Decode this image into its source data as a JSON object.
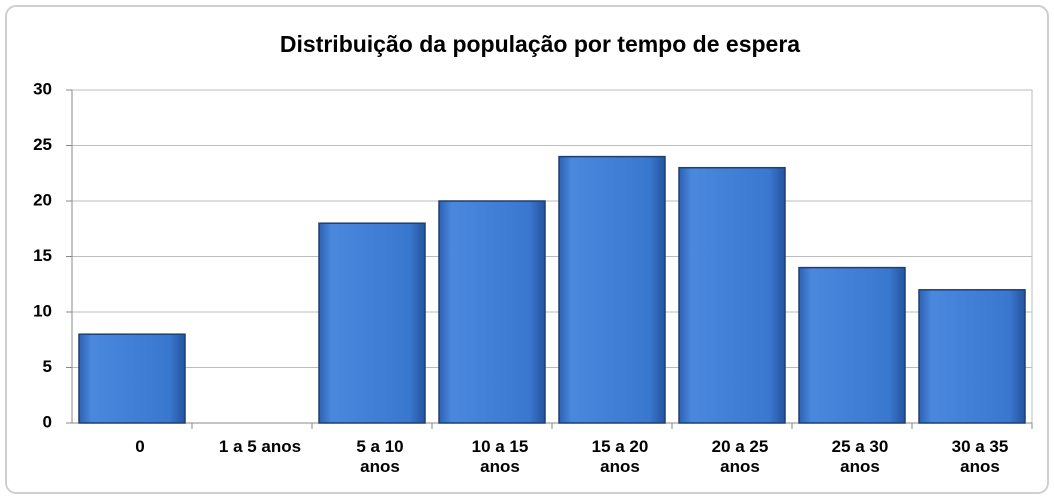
{
  "chart_data": {
    "type": "bar",
    "title": "Distribuição da população por tempo de espera",
    "categories": [
      "0",
      "1 a 5 anos",
      "5 a 10 anos",
      "10 a 15 anos",
      "15 a 20 anos",
      "20 a 25 anos",
      "25 a 30 anos",
      "30 a 35 anos"
    ],
    "values": [
      8,
      0,
      18,
      20,
      24,
      23,
      14,
      12
    ],
    "color": "#3a78d0",
    "ylim": [
      0,
      30
    ],
    "yticks": [
      0,
      5,
      10,
      15,
      20,
      25,
      30
    ],
    "grid": true
  }
}
